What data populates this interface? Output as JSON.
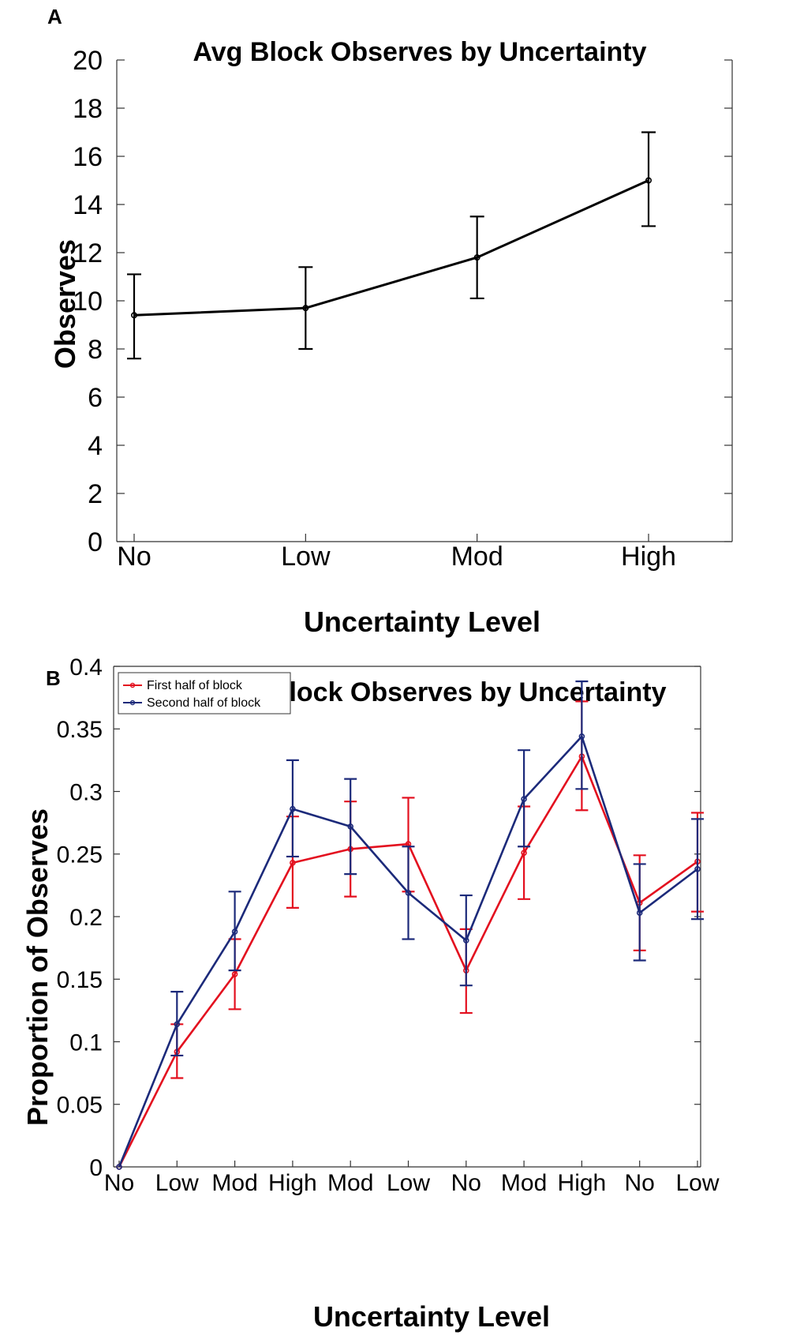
{
  "chart_data": [
    {
      "panel": "A",
      "type": "line",
      "title": "Avg Block Observes by Uncertainty",
      "xlabel": "Uncertainty Level",
      "ylabel": "Observes",
      "categories": [
        "No",
        "Low",
        "Mod",
        "High"
      ],
      "ylim": [
        0,
        20
      ],
      "yticks": [
        "0",
        "2",
        "4",
        "6",
        "8",
        "10",
        "12",
        "14",
        "16",
        "18",
        "20"
      ],
      "series": [
        {
          "name": "Observes",
          "color": "#000000",
          "values": [
            9.4,
            9.7,
            11.8,
            15.0
          ],
          "err_low": [
            7.6,
            8.0,
            10.1,
            13.1
          ],
          "err_high": [
            11.1,
            11.4,
            13.5,
            17.0
          ]
        }
      ]
    },
    {
      "panel": "B",
      "type": "line",
      "title": "Avg Block Observes by Uncertainty",
      "xlabel": "Uncertainty Level",
      "ylabel": "Proportion of Observes",
      "categories": [
        "No",
        "Low",
        "Mod",
        "High",
        "Mod",
        "Low",
        "No",
        "Mod",
        "High",
        "No",
        "Low"
      ],
      "ylim": [
        0,
        0.4
      ],
      "yticks": [
        "0",
        "0.05",
        "0.1",
        "0.15",
        "0.2",
        "0.25",
        "0.3",
        "0.35",
        "0.4"
      ],
      "legend_position": "top-left",
      "series": [
        {
          "name": "First half of block",
          "color": "#e3101f",
          "values": [
            0.0,
            0.092,
            0.154,
            0.243,
            0.254,
            0.258,
            0.157,
            0.251,
            0.328,
            0.211,
            0.244
          ],
          "err_low": [
            0.0,
            0.071,
            0.126,
            0.207,
            0.216,
            0.22,
            0.123,
            0.214,
            0.285,
            0.173,
            0.204
          ],
          "err_high": [
            0.0,
            0.114,
            0.182,
            0.28,
            0.292,
            0.295,
            0.19,
            0.288,
            0.372,
            0.249,
            0.283
          ]
        },
        {
          "name": "Second half of block",
          "color": "#1c2a7a",
          "values": [
            0.0,
            0.114,
            0.188,
            0.286,
            0.272,
            0.219,
            0.181,
            0.294,
            0.344,
            0.203,
            0.238
          ],
          "err_low": [
            0.0,
            0.089,
            0.157,
            0.248,
            0.234,
            0.182,
            0.145,
            0.256,
            0.302,
            0.165,
            0.198
          ],
          "err_high": [
            0.0,
            0.14,
            0.22,
            0.325,
            0.31,
            0.256,
            0.217,
            0.333,
            0.388,
            0.242,
            0.278
          ]
        }
      ]
    }
  ]
}
